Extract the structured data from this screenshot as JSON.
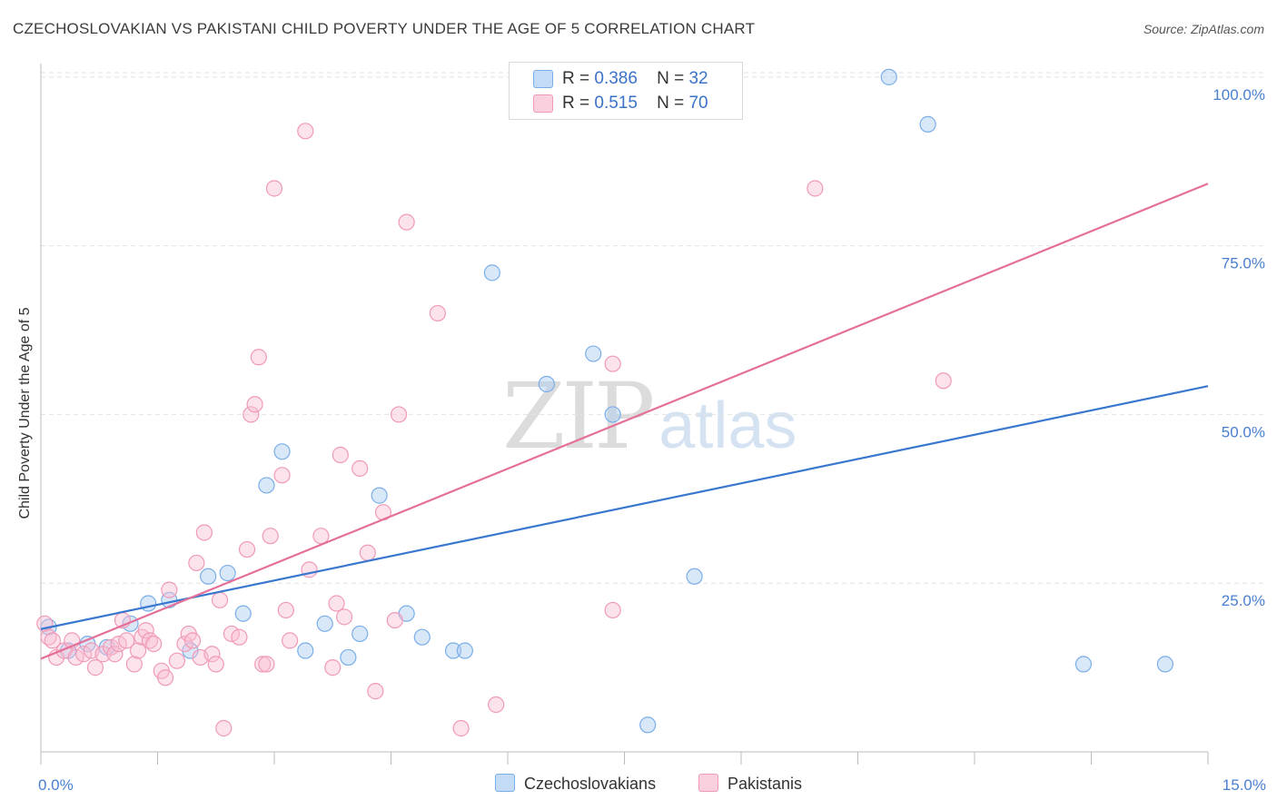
{
  "title": "CZECHOSLOVAKIAN VS PAKISTANI CHILD POVERTY UNDER THE AGE OF 5 CORRELATION CHART",
  "source": "Source: ZipAtlas.com",
  "watermark": {
    "zip": "ZIP",
    "atlas": "atlas"
  },
  "legend": {
    "rows": [
      {
        "r_label": "R =",
        "r_value": "0.386",
        "n_label": "N =",
        "n_value": "32"
      },
      {
        "r_label": "R =",
        "r_value": "0.515",
        "n_label": "N =",
        "n_value": "70"
      }
    ]
  },
  "bottom_legend": [
    "Czechoslovakians",
    "Pakistanis"
  ],
  "chart_data": {
    "type": "scatter",
    "title": "CZECHOSLOVAKIAN VS PAKISTANI CHILD POVERTY UNDER THE AGE OF 5 CORRELATION CHART",
    "xlabel": "",
    "ylabel": "Child Poverty Under the Age of 5",
    "xlim": [
      0,
      15
    ],
    "ylim": [
      0,
      102
    ],
    "x_tick_labels": [
      {
        "value": 0,
        "label": "0.0%"
      },
      {
        "value": 15,
        "label": "15.0%"
      }
    ],
    "y_tick_labels": [
      {
        "value": 25,
        "label": "25.0%"
      },
      {
        "value": 50,
        "label": "50.0%"
      },
      {
        "value": 75,
        "label": "75.0%"
      },
      {
        "value": 100,
        "label": "100.0%"
      }
    ],
    "grid": true,
    "colors": {
      "Czechoslovakians": "#7aaee8",
      "Pakistanis": "#f09ab8",
      "blue_line": "#3a78d0",
      "pink_line": "#e4709a"
    },
    "series": [
      {
        "name": "Czechoslovakians",
        "points": [
          [
            0.1,
            18.5
          ],
          [
            0.35,
            15.0
          ],
          [
            0.6,
            16.0
          ],
          [
            0.85,
            15.5
          ],
          [
            1.15,
            19.0
          ],
          [
            1.38,
            22.0
          ],
          [
            1.65,
            22.5
          ],
          [
            1.92,
            15.0
          ],
          [
            2.15,
            26.0
          ],
          [
            2.4,
            26.5
          ],
          [
            2.6,
            20.5
          ],
          [
            2.9,
            39.5
          ],
          [
            3.1,
            44.5
          ],
          [
            3.4,
            15.0
          ],
          [
            3.65,
            19.0
          ],
          [
            3.95,
            14.0
          ],
          [
            4.1,
            17.5
          ],
          [
            4.35,
            38.0
          ],
          [
            4.7,
            20.5
          ],
          [
            4.9,
            17.0
          ],
          [
            5.3,
            15.0
          ],
          [
            5.45,
            15.0
          ],
          [
            5.8,
            71.0
          ],
          [
            6.5,
            54.5
          ],
          [
            7.1,
            59.0
          ],
          [
            7.35,
            50.0
          ],
          [
            7.8,
            4.0
          ],
          [
            8.4,
            26.0
          ],
          [
            10.9,
            100.0
          ],
          [
            11.4,
            93.0
          ],
          [
            13.4,
            13.0
          ],
          [
            14.45,
            13.0
          ]
        ]
      },
      {
        "name": "Pakistanis",
        "points": [
          [
            0.05,
            19.0
          ],
          [
            0.1,
            17.0
          ],
          [
            0.15,
            16.5
          ],
          [
            0.2,
            14.0
          ],
          [
            0.3,
            15.0
          ],
          [
            0.4,
            16.5
          ],
          [
            0.45,
            14.0
          ],
          [
            0.55,
            14.5
          ],
          [
            0.65,
            15.0
          ],
          [
            0.7,
            12.5
          ],
          [
            0.8,
            14.5
          ],
          [
            0.9,
            15.5
          ],
          [
            0.95,
            14.5
          ],
          [
            1.0,
            16.0
          ],
          [
            1.05,
            19.5
          ],
          [
            1.1,
            16.5
          ],
          [
            1.2,
            13.0
          ],
          [
            1.25,
            15.0
          ],
          [
            1.3,
            17.0
          ],
          [
            1.35,
            18.0
          ],
          [
            1.4,
            16.5
          ],
          [
            1.45,
            16.0
          ],
          [
            1.55,
            12.0
          ],
          [
            1.6,
            11.0
          ],
          [
            1.65,
            24.0
          ],
          [
            1.75,
            13.5
          ],
          [
            1.85,
            16.0
          ],
          [
            1.9,
            17.5
          ],
          [
            1.95,
            16.5
          ],
          [
            2.0,
            28.0
          ],
          [
            2.05,
            14.0
          ],
          [
            2.1,
            32.5
          ],
          [
            2.2,
            14.5
          ],
          [
            2.25,
            13.0
          ],
          [
            2.3,
            22.5
          ],
          [
            2.35,
            3.5
          ],
          [
            2.45,
            17.5
          ],
          [
            2.55,
            17.0
          ],
          [
            2.65,
            30.0
          ],
          [
            2.7,
            50.0
          ],
          [
            2.75,
            51.5
          ],
          [
            2.8,
            58.5
          ],
          [
            2.85,
            13.0
          ],
          [
            2.9,
            13.0
          ],
          [
            2.95,
            32.0
          ],
          [
            3.0,
            83.5
          ],
          [
            3.1,
            41.0
          ],
          [
            3.15,
            21.0
          ],
          [
            3.2,
            16.5
          ],
          [
            3.4,
            92.0
          ],
          [
            3.45,
            27.0
          ],
          [
            3.6,
            32.0
          ],
          [
            3.75,
            12.5
          ],
          [
            3.8,
            22.0
          ],
          [
            3.85,
            44.0
          ],
          [
            3.9,
            20.0
          ],
          [
            4.1,
            42.0
          ],
          [
            4.2,
            29.5
          ],
          [
            4.3,
            9.0
          ],
          [
            4.4,
            35.5
          ],
          [
            4.55,
            19.5
          ],
          [
            4.6,
            50.0
          ],
          [
            4.7,
            78.5
          ],
          [
            5.1,
            65.0
          ],
          [
            5.4,
            3.5
          ],
          [
            5.85,
            7.0
          ],
          [
            7.35,
            57.5
          ],
          [
            7.35,
            21.0
          ],
          [
            9.95,
            83.5
          ],
          [
            11.6,
            55.0
          ]
        ]
      }
    ],
    "trend_lines": [
      {
        "name": "Czechoslovakians",
        "from": [
          0,
          18.2
        ],
        "to": [
          15,
          54.2
        ]
      },
      {
        "name": "Pakistanis",
        "from": [
          0,
          13.8
        ],
        "to": [
          15,
          84.2
        ]
      }
    ]
  }
}
